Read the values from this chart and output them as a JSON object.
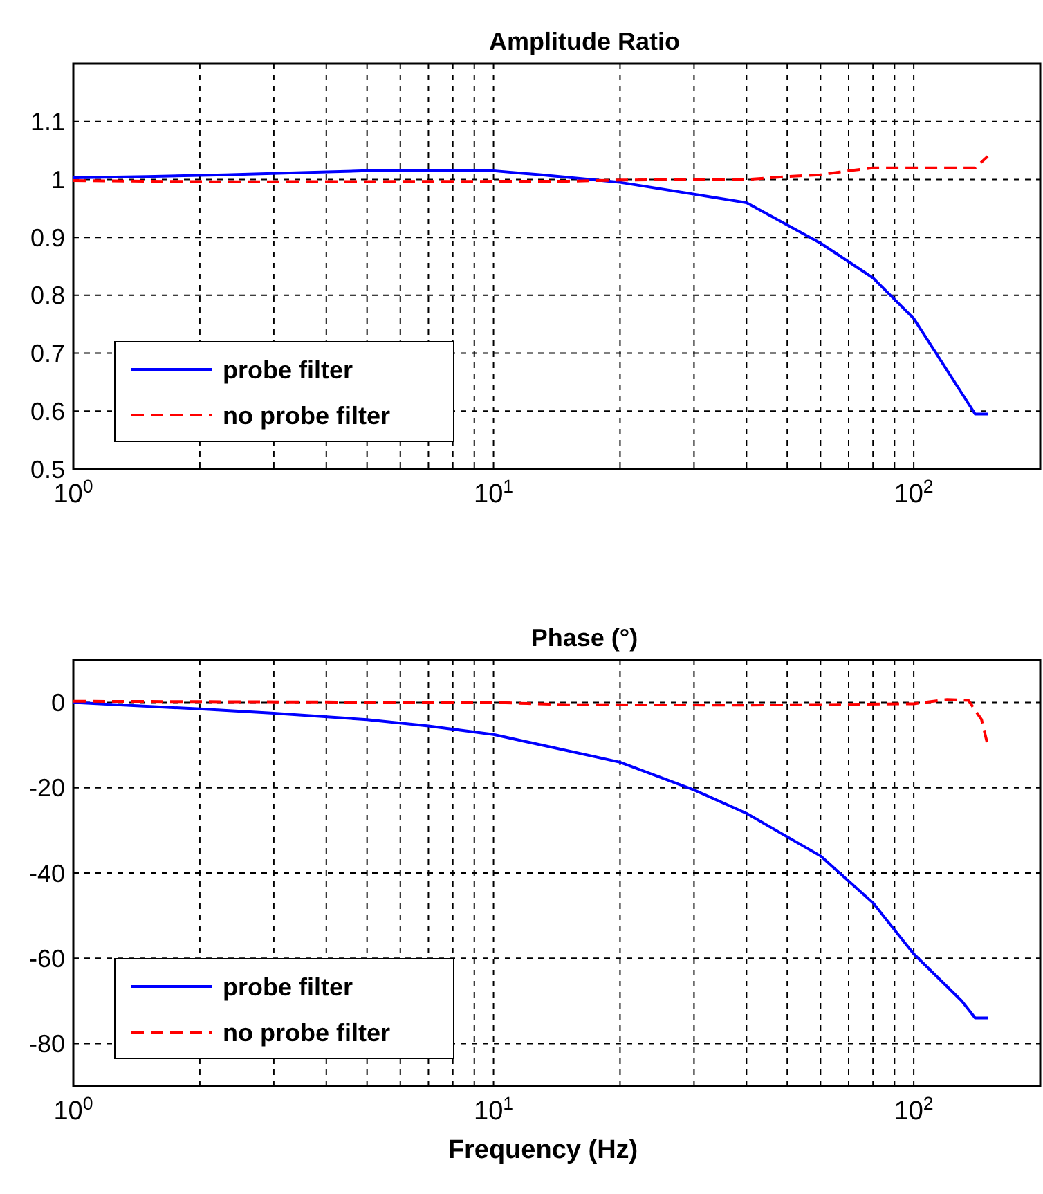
{
  "chart_data": [
    {
      "type": "line",
      "title": "Amplitude Ratio",
      "xlim": [
        1,
        200
      ],
      "ylim": [
        0.5,
        1.2
      ],
      "log": "x",
      "grid": true,
      "legend": "bottom left",
      "xticks": [
        {
          "value": 1,
          "label": "10$^{0}$"
        },
        {
          "value": 10,
          "label": "10$^{1}$"
        },
        {
          "value": 100,
          "label": "10$^{2}$"
        }
      ],
      "yticks": [
        0.5,
        0.6,
        0.7,
        0.8,
        0.9,
        1,
        1.1
      ],
      "series": [
        {
          "name": "probe filter",
          "color": "#0000ff",
          "line_style": "solid",
          "x": [
            1,
            1.5,
            2.3,
            3.5,
            5,
            10,
            13,
            17,
            20,
            40,
            60,
            80,
            100,
            140,
            150
          ],
          "values": [
            1.003,
            1.005,
            1.008,
            1.012,
            1.015,
            1.015,
            1.008,
            1.0,
            0.995,
            0.96,
            0.89,
            0.83,
            0.76,
            0.595,
            0.595
          ]
        },
        {
          "name": "no probe filter",
          "color": "#ff0000",
          "line_style": "dashed",
          "x": [
            1,
            2.2,
            15,
            20,
            40,
            50,
            60,
            70,
            80,
            140,
            150
          ],
          "values": [
            0.998,
            0.996,
            0.997,
            0.999,
            1.0,
            1.005,
            1.008,
            1.015,
            1.02,
            1.02,
            1.04
          ]
        }
      ]
    },
    {
      "type": "line",
      "title": "Phase (°)",
      "xlabel": "Frequency (Hz)",
      "xlim": [
        1,
        200
      ],
      "ylim": [
        -90,
        10
      ],
      "log": "x",
      "grid": true,
      "legend": "bottom left",
      "xticks": [
        {
          "value": 1,
          "label": "10$^{0}$"
        },
        {
          "value": 10,
          "label": "10$^{1}$"
        },
        {
          "value": 100,
          "label": "10$^{2}$"
        }
      ],
      "yticks": [
        -80,
        -60,
        -40,
        -20,
        0
      ],
      "series": [
        {
          "name": "probe filter",
          "color": "#0000ff",
          "line_style": "solid",
          "x": [
            1,
            2,
            3,
            5,
            7,
            10,
            20,
            30,
            40,
            60,
            80,
            100,
            130,
            140,
            150
          ],
          "values": [
            0,
            -1.5,
            -2.5,
            -4,
            -5.5,
            -7.5,
            -14,
            -20.5,
            -26,
            -36,
            -47,
            -59,
            -70,
            -74,
            -74
          ]
        },
        {
          "name": "no probe filter",
          "color": "#ff0000",
          "line_style": "dashed",
          "x": [
            1,
            10,
            15,
            40,
            100,
            120,
            135,
            145,
            150
          ],
          "values": [
            0.3,
            0,
            -0.5,
            -0.6,
            -0.3,
            0.7,
            0.5,
            -4,
            -10
          ]
        }
      ]
    }
  ]
}
